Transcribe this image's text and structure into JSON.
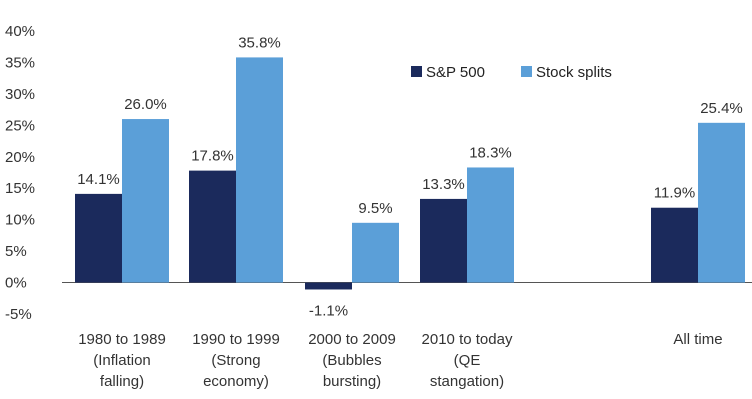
{
  "chart_data": {
    "type": "bar",
    "title": "",
    "xlabel": "",
    "ylabel": "",
    "ylim": [
      -5,
      40
    ],
    "yticks": [
      -5,
      0,
      5,
      10,
      15,
      20,
      25,
      30,
      35,
      40
    ],
    "ytick_labels": [
      "-5%",
      "0%",
      "5%",
      "10%",
      "15%",
      "20%",
      "25%",
      "30%",
      "35%",
      "40%"
    ],
    "grid": false,
    "legend_position": "top-right",
    "categories": [
      [
        "1980 to 1989",
        "(Inflation",
        "falling)"
      ],
      [
        "1990 to 1999",
        "(Strong",
        "economy)"
      ],
      [
        "2000 to 2009",
        "(Bubbles",
        "bursting)"
      ],
      [
        "2010 to today",
        "(QE",
        "stangation)"
      ],
      [
        ""
      ],
      [
        "All time"
      ]
    ],
    "series": [
      {
        "name": "S&P 500",
        "color": "#1b2a5c",
        "values": [
          14.1,
          17.8,
          -1.1,
          13.3,
          null,
          11.9
        ],
        "labels": [
          "14.1%",
          "17.8%",
          "-1.1%",
          "13.3%",
          "",
          "11.9%"
        ]
      },
      {
        "name": "Stock splits",
        "color": "#5b9fd8",
        "values": [
          26.0,
          35.8,
          9.5,
          18.3,
          null,
          25.4
        ],
        "labels": [
          "26.0%",
          "35.8%",
          "9.5%",
          "18.3%",
          "",
          "25.4%"
        ]
      }
    ]
  }
}
